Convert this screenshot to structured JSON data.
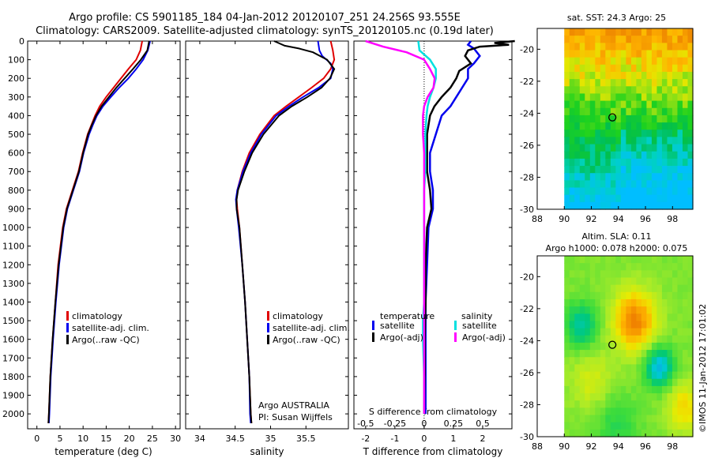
{
  "header": {
    "title_line1": "Argo profile: CS 5901185_184 04-Jan-2012 20120107_251 24.256S 93.555E",
    "title_line2": "Climatology: CARS2009. Satellite-adjusted climatology: synTS_20120105.nc (0.19d later)"
  },
  "colors": {
    "climatology": "#e00000",
    "satellite": "#0000ee",
    "argo": "#000000",
    "sat_salinity": "#00e0e0",
    "argo_salinity_diff": "#ff00ff"
  },
  "depth_ticks": [
    "0",
    "100",
    "200",
    "300",
    "400",
    "500",
    "600",
    "700",
    "800",
    "900",
    "1000",
    "1100",
    "1200",
    "1300",
    "1400",
    "1500",
    "1600",
    "1700",
    "1800",
    "1900",
    "2000"
  ],
  "chart_data": [
    {
      "type": "line",
      "id": "temperature",
      "xlabel": "temperature (deg C)",
      "xlim": [
        -2,
        31
      ],
      "ylim": [
        2080,
        0
      ],
      "xticks": [
        "0",
        "5",
        "10",
        "15",
        "20",
        "25",
        "30"
      ],
      "legend": [
        "climatology",
        "satellite-adj. clim.",
        "Argo(..raw -QC)"
      ],
      "series": [
        {
          "name": "climatology",
          "color": "red",
          "depth": [
            0,
            50,
            100,
            150,
            200,
            250,
            300,
            350,
            400,
            450,
            500,
            600,
            700,
            800,
            900,
            1000,
            1200,
            1400,
            1600,
            1800,
            2000,
            2050
          ],
          "values": [
            22.8,
            22.4,
            21.5,
            19.8,
            18.2,
            16.6,
            15.0,
            13.6,
            12.6,
            11.8,
            11.0,
            9.9,
            9.0,
            7.7,
            6.4,
            5.6,
            4.6,
            4.0,
            3.4,
            2.9,
            2.6,
            2.5
          ]
        },
        {
          "name": "satellite-adj. clim.",
          "color": "blue",
          "depth": [
            0,
            50,
            100,
            150,
            200,
            250,
            300,
            350,
            400,
            450,
            500,
            600,
            700,
            800,
            900,
            1000,
            1200,
            1400,
            1600,
            1800,
            2000,
            2050
          ],
          "values": [
            24.5,
            24.0,
            23.0,
            21.5,
            19.8,
            17.8,
            16.0,
            14.3,
            13.0,
            12.1,
            11.3,
            10.1,
            9.2,
            7.9,
            6.6,
            5.8,
            4.8,
            4.1,
            3.5,
            3.0,
            2.7,
            2.6
          ]
        },
        {
          "name": "Argo(..raw -QC)",
          "color": "black",
          "depth": [
            0,
            50,
            100,
            150,
            200,
            250,
            300,
            350,
            400,
            450,
            500,
            600,
            700,
            800,
            900,
            1000,
            1200,
            1400,
            1600,
            1800,
            2000,
            2050
          ],
          "values": [
            24.3,
            23.9,
            22.5,
            20.8,
            19.0,
            17.2,
            15.6,
            14.0,
            12.8,
            11.9,
            11.1,
            10.0,
            9.1,
            7.8,
            6.5,
            5.7,
            4.7,
            4.0,
            3.4,
            2.9,
            2.6,
            2.5
          ]
        }
      ]
    },
    {
      "type": "line",
      "id": "salinity",
      "xlabel": "salinity",
      "xlim": [
        33.8,
        36.1
      ],
      "ylim": [
        2080,
        0
      ],
      "xticks": [
        "34",
        "34.5",
        "35",
        "35.5"
      ],
      "legend": [
        "climatology",
        "satellite-adj. clim.",
        "Argo(..raw -QC)"
      ],
      "annotation_line1": "Argo AUSTRALIA",
      "annotation_line2": "PI: Susan Wijffels",
      "series": [
        {
          "name": "climatology",
          "color": "red",
          "depth": [
            0,
            50,
            100,
            150,
            200,
            250,
            300,
            350,
            400,
            500,
            600,
            700,
            800,
            850,
            900,
            1000,
            1200,
            1400,
            1600,
            1800,
            2000,
            2050
          ],
          "values": [
            35.85,
            35.88,
            35.9,
            35.85,
            35.75,
            35.58,
            35.4,
            35.22,
            35.05,
            34.85,
            34.7,
            34.6,
            34.53,
            34.52,
            34.53,
            34.56,
            34.6,
            34.64,
            34.67,
            34.7,
            34.72,
            34.73
          ]
        },
        {
          "name": "satellite-adj. clim.",
          "color": "blue",
          "depth": [
            0,
            25,
            50,
            80,
            120,
            150,
            200,
            250,
            300,
            350,
            400,
            500,
            600,
            700,
            800,
            850,
            900,
            1000,
            1200,
            1400,
            1600,
            1800,
            2000,
            2050
          ],
          "values": [
            35.67,
            35.68,
            35.69,
            35.73,
            35.85,
            35.88,
            35.85,
            35.68,
            35.46,
            35.26,
            35.08,
            34.87,
            34.72,
            34.61,
            34.53,
            34.51,
            34.52,
            34.55,
            34.6,
            34.64,
            34.67,
            34.7,
            34.71,
            34.72
          ]
        },
        {
          "name": "Argo(..raw -QC)",
          "color": "black",
          "depth": [
            0,
            25,
            40,
            60,
            100,
            150,
            200,
            250,
            300,
            350,
            400,
            500,
            600,
            700,
            800,
            850,
            900,
            1000,
            1200,
            1400,
            1600,
            1800,
            2000,
            2050
          ],
          "values": [
            35.05,
            35.2,
            35.4,
            35.6,
            35.8,
            35.9,
            35.84,
            35.72,
            35.52,
            35.3,
            35.12,
            34.9,
            34.74,
            34.63,
            34.54,
            34.52,
            34.52,
            34.56,
            34.6,
            34.64,
            34.67,
            34.7,
            34.72,
            34.73
          ]
        }
      ]
    },
    {
      "type": "line",
      "id": "difference",
      "xlabel": "T difference from climatology",
      "xlabel_top": "S difference from climatology",
      "xlim": [
        -2.4,
        3.0
      ],
      "ylim": [
        2080,
        0
      ],
      "xticks": [
        "-2",
        "-1",
        "0",
        "1",
        "2"
      ],
      "xticks_top": [
        "-0.5",
        "-0.25",
        "0",
        "0.25",
        "0.5"
      ],
      "legend_left_title": "temperature",
      "legend_right_title": "salinity",
      "legend": [
        "satellite",
        "Argo(-adj)",
        "satellite",
        "Argo(-adj)"
      ],
      "series": [
        {
          "name": "satellite",
          "group": "temperature",
          "color": "blue",
          "depth": [
            0,
            20,
            40,
            80,
            120,
            150,
            200,
            250,
            300,
            350,
            400,
            500,
            600,
            700,
            800,
            900,
            1000,
            1200,
            1400,
            1600,
            1800,
            2000
          ],
          "values": [
            1.6,
            1.5,
            1.7,
            1.9,
            1.7,
            1.5,
            1.5,
            1.3,
            1.1,
            0.9,
            0.6,
            0.4,
            0.2,
            0.2,
            0.3,
            0.3,
            0.15,
            0.1,
            0.05,
            0.05,
            0.05,
            0.05
          ]
        },
        {
          "name": "Argo(-adj)",
          "group": "temperature",
          "color": "black",
          "depth": [
            0,
            10,
            20,
            30,
            50,
            80,
            120,
            160,
            200,
            250,
            300,
            350,
            400,
            500,
            600,
            700,
            800,
            900,
            1000,
            1200,
            1400,
            1600,
            1800,
            2000
          ],
          "values": [
            3.1,
            2.4,
            2.9,
            1.9,
            1.5,
            1.4,
            1.6,
            1.2,
            1.1,
            0.9,
            0.6,
            0.35,
            0.2,
            0.1,
            0.1,
            0.1,
            0.2,
            0.25,
            0.1,
            0.05,
            0.05,
            0.02,
            0.02,
            0.0
          ]
        },
        {
          "name": "satellite",
          "group": "salinity",
          "color": "cyan",
          "depth": [
            0,
            50,
            100,
            150,
            200,
            250,
            300,
            350,
            400,
            500,
            600,
            700,
            800,
            900,
            1000,
            1200,
            1400,
            1500,
            1600,
            1800,
            2000
          ],
          "values": [
            -0.05,
            -0.04,
            0.05,
            0.1,
            0.1,
            0.08,
            0.05,
            0.03,
            0.02,
            0.01,
            0.01,
            0.01,
            0.0,
            0.0,
            0.0,
            0.0,
            0.0,
            -0.01,
            -0.01,
            0.0,
            0.0
          ]
        },
        {
          "name": "Argo(-adj)",
          "group": "salinity",
          "color": "magenta",
          "depth": [
            0,
            30,
            60,
            100,
            150,
            200,
            250,
            300,
            350,
            400,
            500,
            600,
            700,
            800,
            900,
            1000,
            1200,
            1400,
            1600,
            1800,
            2000
          ],
          "values": [
            -0.5,
            -0.35,
            -0.15,
            0.0,
            0.05,
            0.09,
            0.08,
            0.03,
            0.0,
            -0.01,
            -0.01,
            0.0,
            0.0,
            0.0,
            0.0,
            0.0,
            0.0,
            0.0,
            0.0,
            0.0,
            0.0
          ]
        }
      ]
    },
    {
      "type": "heatmap",
      "id": "sst_map",
      "title": "sat. SST: 24.3 Argo: 25",
      "xlim": [
        88,
        99.5
      ],
      "ylim": [
        -30,
        -18.7
      ],
      "xticks": [
        "88",
        "90",
        "92",
        "94",
        "96",
        "98"
      ],
      "yticks": [
        "-20",
        "-22",
        "-24",
        "-26",
        "-28",
        "-30"
      ],
      "marker": {
        "lon": 93.555,
        "lat": -24.256
      }
    },
    {
      "type": "heatmap",
      "id": "sla_map",
      "title_line1": "Altim. SLA: 0.11",
      "title_line2": "Argo h1000: 0.078 h2000: 0.075",
      "xlim": [
        88,
        99.5
      ],
      "ylim": [
        -30,
        -18.7
      ],
      "xticks": [
        "88",
        "90",
        "92",
        "94",
        "96",
        "98"
      ],
      "yticks": [
        "-20",
        "-22",
        "-24",
        "-26",
        "-28",
        "-30"
      ],
      "marker": {
        "lon": 93.555,
        "lat": -24.256
      }
    }
  ],
  "footer": {
    "credit": "©IMOS 11-Jan-2012 17:01:02"
  }
}
